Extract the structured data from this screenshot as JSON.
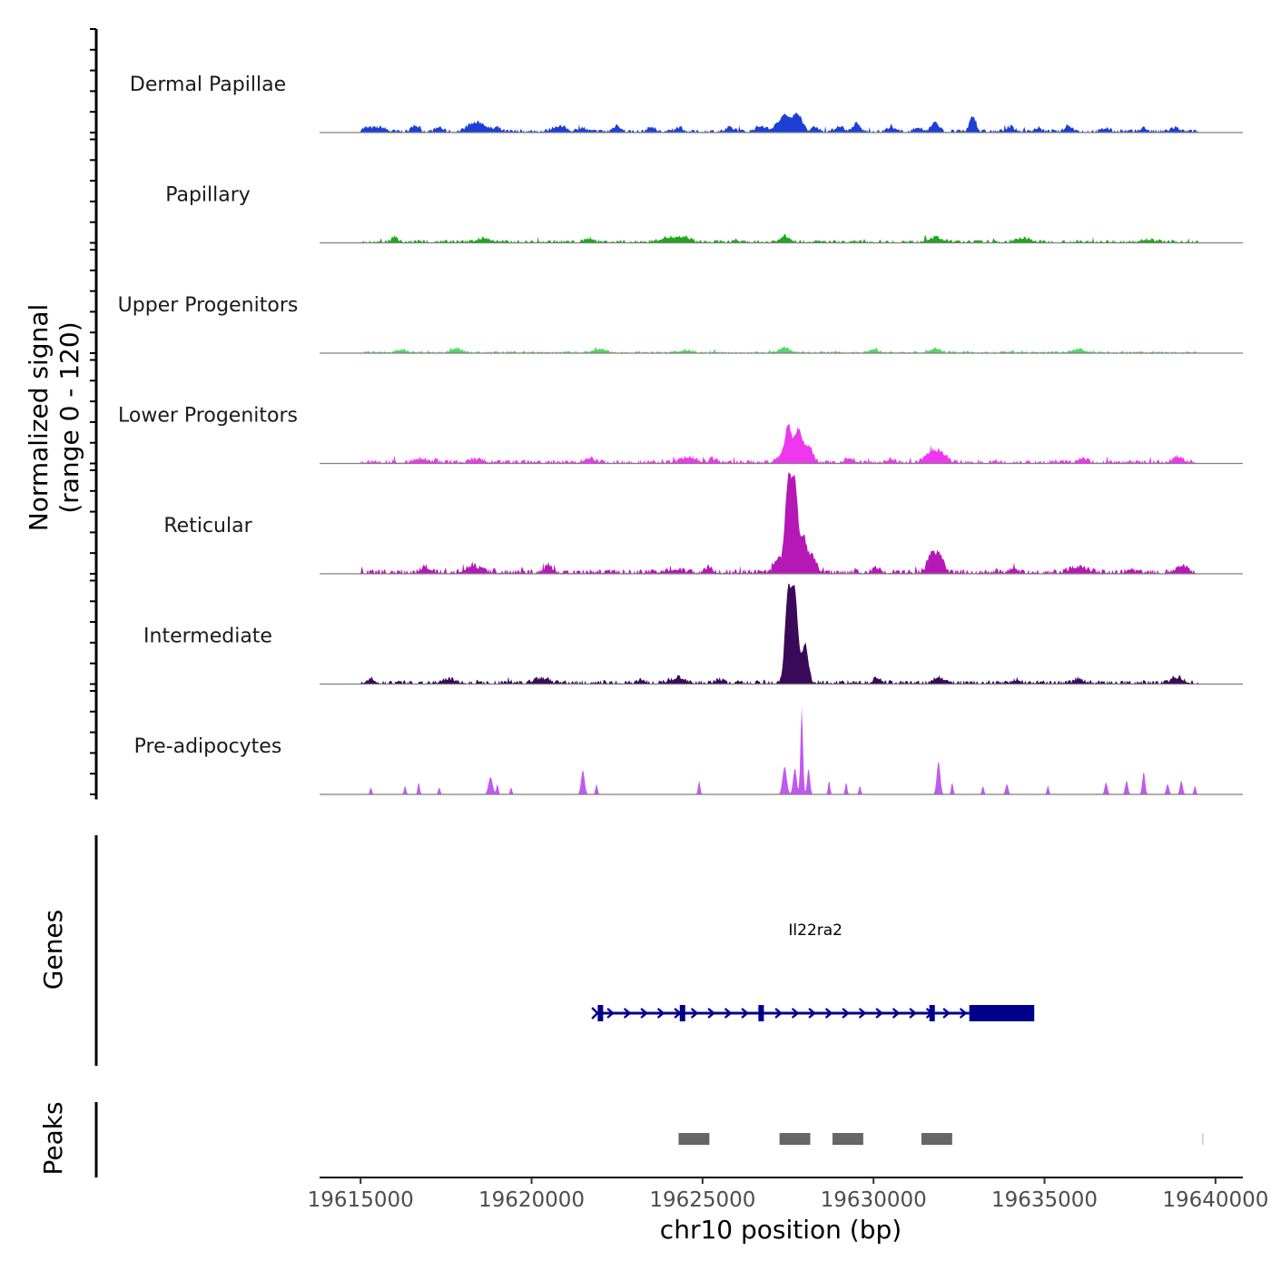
{
  "chart_data": {
    "type": "area",
    "title": "",
    "xlabel": "chr10 position (bp)",
    "ylabel_line1": "Normalized signal",
    "ylabel_line2": "(range 0 - 120)",
    "yrange": [
      0,
      120
    ],
    "xlim": [
      19613800,
      19640800
    ],
    "xticks": [
      19615000,
      19620000,
      19625000,
      19630000,
      19635000,
      19640000
    ],
    "xtick_labels": [
      "19615000",
      "19620000",
      "19625000",
      "19630000",
      "19635000",
      "19640000"
    ],
    "signal_start": 19615000,
    "signal_end": 19639500,
    "tracks": [
      {
        "name": "Dermal Papillae",
        "color": "#1c3fd6",
        "peaks": [
          [
            19615200,
            4,
            200
          ],
          [
            19615600,
            4,
            150
          ],
          [
            19616600,
            7,
            100
          ],
          [
            19617300,
            5,
            100
          ],
          [
            19618500,
            9,
            200
          ],
          [
            19618200,
            5,
            150
          ],
          [
            19619000,
            4,
            100
          ],
          [
            19620800,
            6,
            200
          ],
          [
            19621500,
            4,
            100
          ],
          [
            19622500,
            7,
            100
          ],
          [
            19623500,
            5,
            100
          ],
          [
            19624300,
            4,
            100
          ],
          [
            19625800,
            4,
            120
          ],
          [
            19626700,
            6,
            150
          ],
          [
            19627300,
            10,
            180
          ],
          [
            19627800,
            18,
            120
          ],
          [
            19627500,
            12,
            150
          ],
          [
            19628300,
            5,
            100
          ],
          [
            19629000,
            6,
            120
          ],
          [
            19629500,
            9,
            100
          ],
          [
            19630500,
            5,
            100
          ],
          [
            19631300,
            5,
            100
          ],
          [
            19631800,
            12,
            100
          ],
          [
            19632900,
            17,
            90
          ],
          [
            19634000,
            5,
            120
          ],
          [
            19634800,
            4,
            100
          ],
          [
            19635700,
            7,
            100
          ],
          [
            19636800,
            4,
            100
          ],
          [
            19637900,
            4,
            100
          ],
          [
            19638800,
            4,
            120
          ]
        ],
        "noise": 1.5
      },
      {
        "name": "Papillary",
        "color": "#1ea81e",
        "peaks": [
          [
            19616000,
            6,
            80
          ],
          [
            19618600,
            4,
            200
          ],
          [
            19621700,
            4,
            120
          ],
          [
            19624000,
            5,
            250
          ],
          [
            19624500,
            5,
            150
          ],
          [
            19627400,
            7,
            120
          ],
          [
            19631800,
            5,
            200
          ],
          [
            19634400,
            4,
            200
          ],
          [
            19638000,
            3,
            200
          ]
        ],
        "noise": 1.4
      },
      {
        "name": "Upper Progenitors",
        "color": "#57d56a",
        "peaks": [
          [
            19616200,
            3,
            150
          ],
          [
            19617800,
            5,
            150
          ],
          [
            19622000,
            4,
            150
          ],
          [
            19624500,
            3,
            150
          ],
          [
            19627400,
            6,
            120
          ],
          [
            19630000,
            3,
            150
          ],
          [
            19631800,
            5,
            120
          ],
          [
            19636000,
            4,
            150
          ]
        ],
        "noise": 1.0
      },
      {
        "name": "Lower Progenitors",
        "color": "#ee37ee",
        "peaks": [
          [
            19616800,
            4,
            200
          ],
          [
            19618400,
            3,
            200
          ],
          [
            19621700,
            5,
            150
          ],
          [
            19624600,
            6,
            200
          ],
          [
            19625300,
            4,
            100
          ],
          [
            19627200,
            5,
            100
          ],
          [
            19627500,
            40,
            100
          ],
          [
            19627800,
            37,
            110
          ],
          [
            19628100,
            18,
            120
          ],
          [
            19629300,
            5,
            120
          ],
          [
            19630500,
            4,
            100
          ],
          [
            19631700,
            12,
            180
          ],
          [
            19632000,
            8,
            150
          ],
          [
            19636100,
            5,
            120
          ],
          [
            19638900,
            6,
            150
          ]
        ],
        "noise": 1.8
      },
      {
        "name": "Reticular",
        "color": "#b618b6",
        "peaks": [
          [
            19616900,
            6,
            130
          ],
          [
            19618300,
            7,
            200
          ],
          [
            19620500,
            9,
            100
          ],
          [
            19624200,
            4,
            200
          ],
          [
            19625200,
            6,
            100
          ],
          [
            19627200,
            15,
            100
          ],
          [
            19627500,
            100,
            90
          ],
          [
            19627700,
            98,
            90
          ],
          [
            19627950,
            38,
            90
          ],
          [
            19628200,
            18,
            120
          ],
          [
            19630100,
            5,
            100
          ],
          [
            19631700,
            22,
            120
          ],
          [
            19631950,
            18,
            100
          ],
          [
            19634100,
            6,
            100
          ],
          [
            19636000,
            6,
            250
          ],
          [
            19637500,
            4,
            100
          ],
          [
            19639000,
            8,
            150
          ]
        ],
        "noise": 2.2
      },
      {
        "name": "Intermediate",
        "color": "#3a0a5a",
        "peaks": [
          [
            19615300,
            5,
            100
          ],
          [
            19617600,
            4,
            200
          ],
          [
            19620300,
            5,
            200
          ],
          [
            19623200,
            4,
            100
          ],
          [
            19624300,
            6,
            200
          ],
          [
            19625500,
            4,
            100
          ],
          [
            19627500,
            100,
            90
          ],
          [
            19627700,
            100,
            90
          ],
          [
            19628000,
            44,
            90
          ],
          [
            19630100,
            6,
            100
          ],
          [
            19631900,
            7,
            120
          ],
          [
            19634200,
            4,
            100
          ],
          [
            19636000,
            5,
            120
          ],
          [
            19638900,
            6,
            150
          ]
        ],
        "noise": 1.8
      },
      {
        "name": "Pre-adipocytes",
        "color": "#c059ef",
        "peaks": [
          [
            19615300,
            8,
            30
          ],
          [
            19616300,
            10,
            30
          ],
          [
            19616700,
            14,
            30
          ],
          [
            19617300,
            8,
            30
          ],
          [
            19618800,
            20,
            60
          ],
          [
            19619000,
            12,
            30
          ],
          [
            19619400,
            8,
            30
          ],
          [
            19621500,
            28,
            50
          ],
          [
            19621900,
            12,
            30
          ],
          [
            19624900,
            16,
            30
          ],
          [
            19627400,
            32,
            60
          ],
          [
            19627700,
            30,
            50
          ],
          [
            19627900,
            100,
            35
          ],
          [
            19628100,
            30,
            40
          ],
          [
            19628700,
            16,
            30
          ],
          [
            19629200,
            14,
            30
          ],
          [
            19629600,
            10,
            30
          ],
          [
            19631900,
            38,
            50
          ],
          [
            19632300,
            14,
            30
          ],
          [
            19633200,
            10,
            30
          ],
          [
            19633900,
            12,
            40
          ],
          [
            19635100,
            10,
            30
          ],
          [
            19636800,
            14,
            40
          ],
          [
            19637400,
            16,
            40
          ],
          [
            19637900,
            26,
            40
          ],
          [
            19638600,
            12,
            40
          ],
          [
            19639000,
            16,
            40
          ],
          [
            19639400,
            10,
            30
          ]
        ],
        "noise": 0.0
      }
    ],
    "genes": {
      "title": "Genes",
      "name": "Il22ra2",
      "color": "#00008b",
      "start": 19621900,
      "end": 19634700,
      "thick_start": 19632800,
      "exons": [
        19622000,
        19624400,
        19626700,
        19631700
      ]
    },
    "peaks_track": {
      "title": "Peaks",
      "color": "#666666",
      "regions": [
        [
          19624300,
          19625200
        ],
        [
          19627250,
          19628150
        ],
        [
          19628800,
          19629700
        ],
        [
          19631400,
          19632300
        ],
        [
          19639600,
          19639650
        ]
      ]
    }
  }
}
